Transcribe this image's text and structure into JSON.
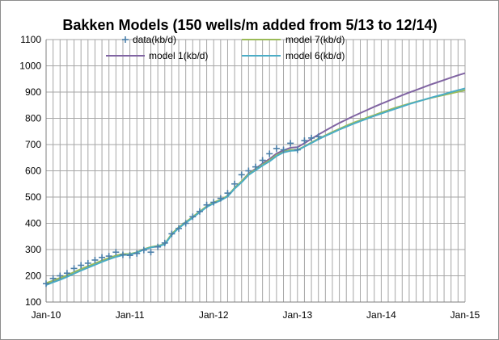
{
  "chart_data": {
    "type": "line",
    "title": "Bakken Models (150 wells/m added from 5/13 to 12/14)",
    "xlabel": "",
    "ylabel": "",
    "xlim": [
      0,
      60
    ],
    "ylim": [
      100,
      1100
    ],
    "y_ticks": [
      100,
      200,
      300,
      400,
      500,
      600,
      700,
      800,
      900,
      1000,
      1100
    ],
    "x_ticks": [
      {
        "pos": 0,
        "label": "Jan-10"
      },
      {
        "pos": 12,
        "label": "Jan-11"
      },
      {
        "pos": 24,
        "label": "Jan-12"
      },
      {
        "pos": 36,
        "label": "Jan-13"
      },
      {
        "pos": 48,
        "label": "Jan-14"
      },
      {
        "pos": 60,
        "label": "Jan-15"
      }
    ],
    "grid": true,
    "legend_position": "top",
    "series": [
      {
        "name": "data(kb/d)",
        "kind": "scatter",
        "color": "#4a7ea8",
        "x": [
          0,
          1,
          2,
          3,
          4,
          5,
          6,
          7,
          8,
          9,
          10,
          11,
          12,
          13,
          14,
          15,
          16,
          17,
          18,
          19,
          20,
          21,
          22,
          23,
          24,
          25,
          26,
          27,
          28,
          29,
          30,
          31,
          32,
          33,
          34,
          35,
          36,
          37,
          38,
          39
        ],
        "y": [
          170,
          190,
          200,
          210,
          228,
          240,
          248,
          260,
          270,
          275,
          290,
          280,
          278,
          285,
          298,
          290,
          310,
          325,
          360,
          380,
          400,
          425,
          445,
          470,
          480,
          495,
          515,
          550,
          585,
          600,
          615,
          640,
          665,
          685,
          680,
          705,
          680,
          715,
          725,
          730
        ]
      },
      {
        "name": "model 7(kb/d)",
        "kind": "line",
        "color": "#9bbb59",
        "x": [
          0,
          1,
          2,
          3,
          4,
          5,
          6,
          7,
          8,
          9,
          10,
          11,
          12,
          13,
          14,
          15,
          16,
          17,
          18,
          19,
          20,
          21,
          22,
          23,
          24,
          25,
          26,
          27,
          28,
          29,
          30,
          31,
          32,
          33,
          34,
          35,
          36,
          37,
          38,
          39,
          40,
          41,
          42,
          43,
          44,
          45,
          46,
          47,
          48,
          49,
          50,
          51,
          52,
          53,
          54,
          55,
          56,
          57,
          58,
          59,
          60
        ],
        "y": [
          172,
          182,
          192,
          202,
          214,
          226,
          237,
          247,
          258,
          268,
          277,
          283,
          283,
          290,
          302,
          310,
          314,
          322,
          360,
          385,
          405,
          425,
          445,
          465,
          480,
          490,
          505,
          535,
          560,
          588,
          605,
          623,
          640,
          660,
          672,
          680,
          680,
          693,
          708,
          722,
          735,
          748,
          760,
          772,
          783,
          793,
          803,
          812,
          822,
          831,
          840,
          848,
          856,
          863,
          870,
          877,
          883,
          889,
          895,
          901,
          907
        ]
      },
      {
        "name": "model 1(kb/d)",
        "kind": "line",
        "color": "#8064a2",
        "x": [
          0,
          1,
          2,
          3,
          4,
          5,
          6,
          7,
          8,
          9,
          10,
          11,
          12,
          13,
          14,
          15,
          16,
          17,
          18,
          19,
          20,
          21,
          22,
          23,
          24,
          25,
          26,
          27,
          28,
          29,
          30,
          31,
          32,
          33,
          34,
          35,
          36,
          37,
          38,
          39,
          40,
          41,
          42,
          43,
          44,
          45,
          46,
          47,
          48,
          49,
          50,
          51,
          52,
          53,
          54,
          55,
          56,
          57,
          58,
          59,
          60
        ],
        "y": [
          170,
          180,
          190,
          200,
          212,
          224,
          235,
          245,
          256,
          266,
          275,
          281,
          282,
          289,
          301,
          309,
          313,
          321,
          358,
          384,
          404,
          424,
          444,
          464,
          478,
          489,
          504,
          534,
          560,
          590,
          608,
          628,
          645,
          666,
          678,
          688,
          690,
          705,
          722,
          738,
          753,
          768,
          782,
          795,
          808,
          820,
          832,
          844,
          855,
          866,
          877,
          888,
          898,
          908,
          918,
          928,
          937,
          946,
          955,
          964,
          972
        ]
      },
      {
        "name": "model 6(kb/d)",
        "kind": "line",
        "color": "#4bacc6",
        "x": [
          0,
          1,
          2,
          3,
          4,
          5,
          6,
          7,
          8,
          9,
          10,
          11,
          12,
          13,
          14,
          15,
          16,
          17,
          18,
          19,
          20,
          21,
          22,
          23,
          24,
          25,
          26,
          27,
          28,
          29,
          30,
          31,
          32,
          33,
          34,
          35,
          36,
          37,
          38,
          39,
          40,
          41,
          42,
          43,
          44,
          45,
          46,
          47,
          48,
          49,
          50,
          51,
          52,
          53,
          54,
          55,
          56,
          57,
          58,
          59,
          60
        ],
        "y": [
          165,
          175,
          185,
          196,
          208,
          220,
          231,
          242,
          253,
          263,
          272,
          279,
          281,
          288,
          300,
          308,
          312,
          320,
          356,
          382,
          402,
          422,
          442,
          462,
          476,
          487,
          502,
          532,
          556,
          584,
          602,
          620,
          636,
          656,
          670,
          676,
          678,
          692,
          706,
          720,
          733,
          745,
          757,
          768,
          779,
          789,
          799,
          809,
          818,
          827,
          836,
          845,
          854,
          862,
          870,
          878,
          885,
          892,
          900,
          907,
          914
        ]
      }
    ]
  }
}
